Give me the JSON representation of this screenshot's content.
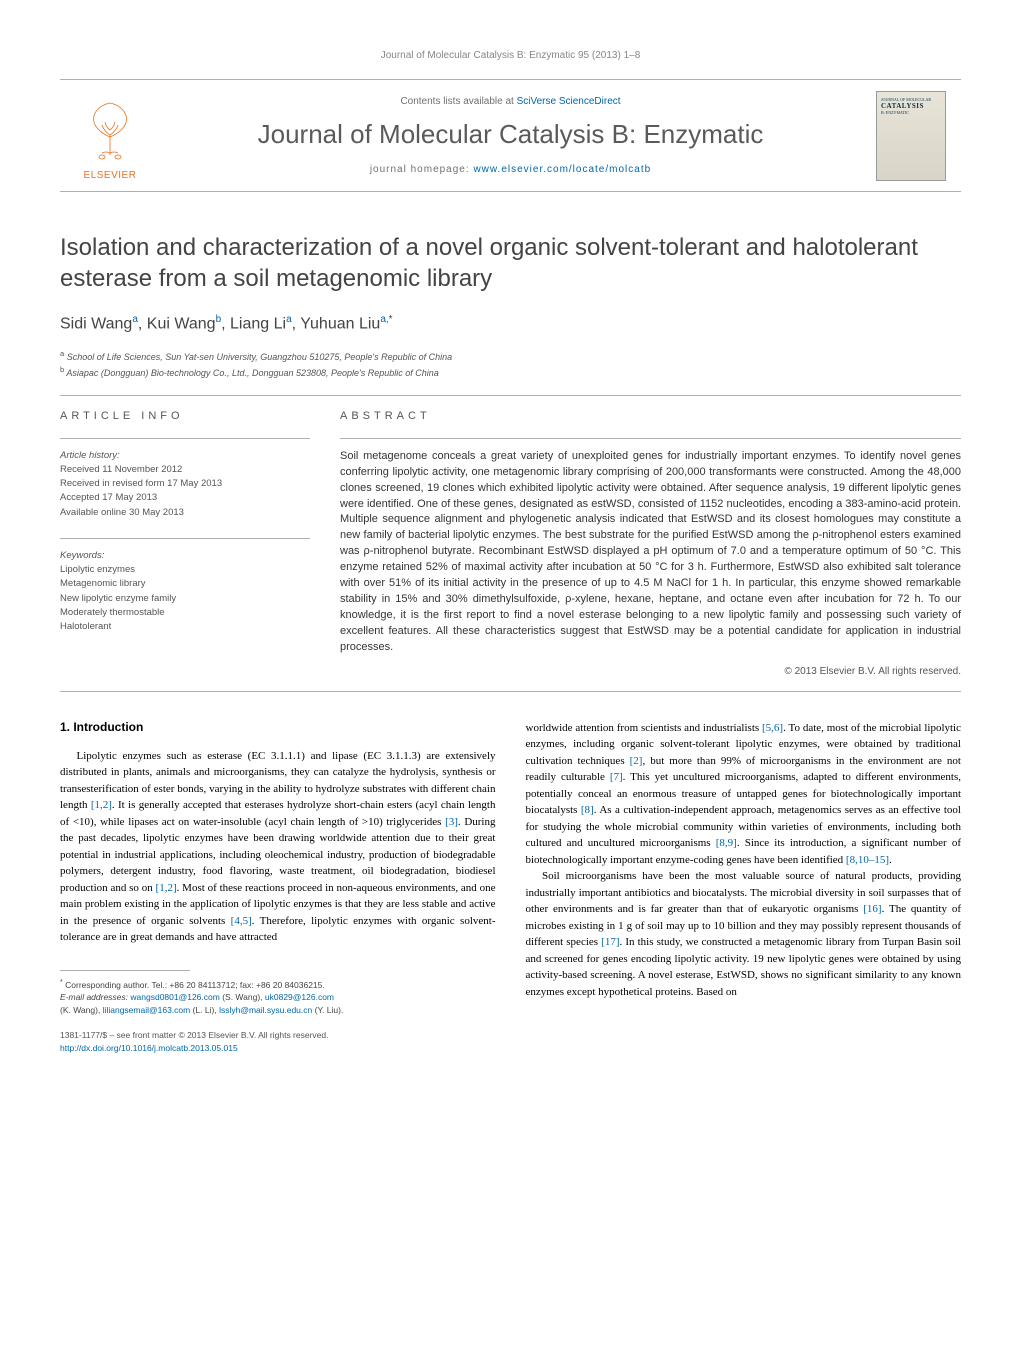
{
  "running_header": "Journal of Molecular Catalysis B: Enzymatic 95 (2013) 1–8",
  "masthead": {
    "contents_prefix": "Contents lists available at ",
    "contents_link": "SciVerse ScienceDirect",
    "journal_name": "Journal of Molecular Catalysis B: Enzymatic",
    "homepage_prefix": "journal homepage: ",
    "homepage_link": "www.elsevier.com/locate/molcatb",
    "elsevier_label": "ELSEVIER",
    "cover_text": "CATALYSIS"
  },
  "article": {
    "title": "Isolation and characterization of a novel organic solvent-tolerant and halotolerant esterase from a soil metagenomic library",
    "authors_html": "Sidi Wang<sup>a</sup>, Kui Wang<sup>b</sup>, Liang Li<sup>a</sup>, Yuhuan Liu<sup>a,</sup><sup class='sup-star'>*</sup>",
    "affiliations": {
      "a": "School of Life Sciences, Sun Yat-sen University, Guangzhou 510275, People's Republic of China",
      "b": "Asiapac (Dongguan) Bio-technology Co., Ltd., Dongguan 523808, People's Republic of China"
    }
  },
  "info": {
    "label": "article info",
    "history_hdr": "Article history:",
    "history": [
      "Received 11 November 2012",
      "Received in revised form 17 May 2013",
      "Accepted 17 May 2013",
      "Available online 30 May 2013"
    ],
    "keywords_hdr": "Keywords:",
    "keywords": [
      "Lipolytic enzymes",
      "Metagenomic library",
      "New lipolytic enzyme family",
      "Moderately thermostable",
      "Halotolerant"
    ]
  },
  "abstract": {
    "label": "abstract",
    "text": "Soil metagenome conceals a great variety of unexploited genes for industrially important enzymes. To identify novel genes conferring lipolytic activity, one metagenomic library comprising of 200,000 transformants were constructed. Among the 48,000 clones screened, 19 clones which exhibited lipolytic activity were obtained. After sequence analysis, 19 different lipolytic genes were identified. One of these genes, designated as estWSD, consisted of 1152 nucleotides, encoding a 383-amino-acid protein. Multiple sequence alignment and phylogenetic analysis indicated that EstWSD and its closest homologues may constitute a new family of bacterial lipolytic enzymes. The best substrate for the purified EstWSD among the ρ-nitrophenol esters examined was ρ-nitrophenol butyrate. Recombinant EstWSD displayed a pH optimum of 7.0 and a temperature optimum of 50 °C. This enzyme retained 52% of maximal activity after incubation at 50 °C for 3 h. Furthermore, EstWSD also exhibited salt tolerance with over 51% of its initial activity in the presence of up to 4.5 M NaCl for 1 h. In particular, this enzyme showed remarkable stability in 15% and 30% dimethylsulfoxide, ρ-xylene, hexane, heptane, and octane even after incubation for 72 h. To our knowledge, it is the first report to find a novel esterase belonging to a new lipolytic family and possessing such variety of excellent features. All these characteristics suggest that EstWSD may be a potential candidate for application in industrial processes.",
    "copyright": "© 2013 Elsevier B.V. All rights reserved."
  },
  "body": {
    "heading": "1. Introduction",
    "col1_p1": "Lipolytic enzymes such as esterase (EC 3.1.1.1) and lipase (EC 3.1.1.3) are extensively distributed in plants, animals and microorganisms, they can catalyze the hydrolysis, synthesis or transesterification of ester bonds, varying in the ability to hydrolyze substrates with different chain length [1,2]. It is generally accepted that esterases hydrolyze short-chain esters (acyl chain length of <10), while lipases act on water-insoluble (acyl chain length of >10) triglycerides [3]. During the past decades, lipolytic enzymes have been drawing worldwide attention due to their great potential in industrial applications, including oleochemical industry, production of biodegradable polymers, detergent industry, food flavoring, waste treatment, oil biodegradation, biodiesel production and so on [1,2]. Most of these reactions proceed in non-aqueous environments, and one main problem existing in the application of lipolytic enzymes is that they are less stable and active in the presence of organic solvents [4,5]. Therefore, lipolytic enzymes with organic solvent-tolerance are in great demands and have attracted",
    "col2_p1": "worldwide attention from scientists and industrialists [5,6]. To date, most of the microbial lipolytic enzymes, including organic solvent-tolerant lipolytic enzymes, were obtained by traditional cultivation techniques [2], but more than 99% of microorganisms in the environment are not readily culturable [7]. This yet uncultured microorganisms, adapted to different environments, potentially conceal an enormous treasure of untapped genes for biotechnologically important biocatalysts [8]. As a cultivation-independent approach, metagenomics serves as an effective tool for studying the whole microbial community within varieties of environments, including both cultured and uncultured microorganisms [8,9]. Since its introduction, a significant number of biotechnologically important enzyme-coding genes have been identified [8,10–15].",
    "col2_p2": "Soil microorganisms have been the most valuable source of natural products, providing industrially important antibiotics and biocatalysts. The microbial diversity in soil surpasses that of other environments and is far greater than that of eukaryotic organisms [16]. The quantity of microbes existing in 1 g of soil may up to 10 billion and they may possibly represent thousands of different species [17]. In this study, we constructed a metagenomic library from Turpan Basin soil and screened for genes encoding lipolytic activity. 19 new lipolytic genes were obtained by using activity-based screening. A novel esterase, EstWSD, shows no significant similarity to any known enzymes except hypothetical proteins. Based on",
    "refs": {
      "r1_2a": "[1,2]",
      "r3": "[3]",
      "r1_2b": "[1,2]",
      "r4_5": "[4,5]",
      "r5_6": "[5,6]",
      "r2": "[2]",
      "r7": "[7]",
      "r8a": "[8]",
      "r8_9": "[8,9]",
      "r8_10_15": "[8,10–15]",
      "r16": "[16]",
      "r17": "[17]"
    }
  },
  "footnote": {
    "corr": "Corresponding author. Tel.: +86 20 84113712; fax: +86 20 84036215.",
    "email_label": "E-mail addresses: ",
    "emails": [
      {
        "addr": "wangsd0801@126.com",
        "who": "(S. Wang),"
      },
      {
        "addr": "uk0829@126.com",
        "who": ""
      },
      {
        "addr2_who": "(K. Wang),"
      },
      {
        "addr": "liliangsemail@163.com",
        "who": "(L. Li),"
      },
      {
        "addr": "lsslyh@mail.sysu.edu.cn",
        "who": "(Y. Liu)."
      }
    ]
  },
  "footer": {
    "line1": "1381-1177/$ – see front matter © 2013 Elsevier B.V. All rights reserved.",
    "doi": "http://dx.doi.org/10.1016/j.molcatb.2013.05.015"
  },
  "colors": {
    "link": "#0066aa",
    "text_gray": "#555555",
    "elsevier_orange": "#e9711c",
    "border": "#b0b0b0"
  }
}
